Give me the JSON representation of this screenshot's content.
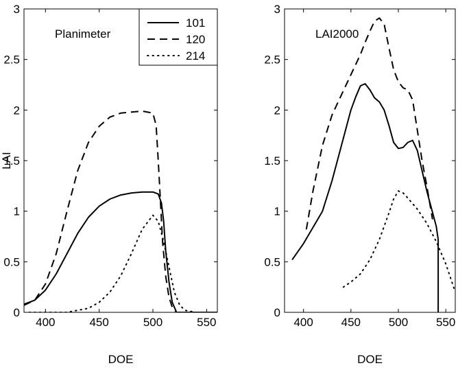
{
  "chart_data": [
    {
      "type": "line",
      "annotation": "Planimeter",
      "xlabel": "DOE",
      "ylabel": "LAI",
      "xlim": [
        380,
        560
      ],
      "ylim": [
        0,
        3
      ],
      "xticks": [
        400,
        450,
        500,
        550
      ],
      "yticks": [
        0,
        0.5,
        1,
        1.5,
        2,
        2.5,
        3
      ],
      "legend_position": "top-right",
      "series": [
        {
          "name": "101",
          "style": "solid",
          "x": [
            380,
            390,
            400,
            410,
            420,
            430,
            440,
            450,
            460,
            470,
            480,
            490,
            500,
            505,
            508,
            510,
            512,
            515,
            518,
            522,
            530,
            540,
            560
          ],
          "y": [
            0.08,
            0.12,
            0.22,
            0.38,
            0.58,
            0.78,
            0.94,
            1.05,
            1.12,
            1.16,
            1.18,
            1.19,
            1.19,
            1.17,
            1.08,
            0.9,
            0.6,
            0.3,
            0.1,
            0.0,
            0.0,
            0.0,
            0.0
          ]
        },
        {
          "name": "120",
          "style": "dashed",
          "x": [
            380,
            390,
            400,
            410,
            420,
            430,
            440,
            450,
            460,
            470,
            480,
            490,
            500,
            503,
            505,
            507,
            509,
            512,
            515,
            518,
            522,
            530,
            560
          ],
          "y": [
            0.07,
            0.12,
            0.28,
            0.58,
            1.0,
            1.4,
            1.68,
            1.84,
            1.93,
            1.97,
            1.98,
            1.99,
            1.97,
            1.85,
            1.5,
            1.1,
            0.7,
            0.35,
            0.15,
            0.05,
            0.0,
            0.0,
            0.0
          ]
        },
        {
          "name": "214",
          "style": "dotted",
          "x": [
            385,
            400,
            420,
            440,
            450,
            460,
            470,
            480,
            490,
            500,
            505,
            510,
            515,
            520,
            525,
            530,
            540,
            560
          ],
          "y": [
            0.0,
            0.0,
            0.0,
            0.04,
            0.1,
            0.2,
            0.36,
            0.58,
            0.82,
            0.96,
            0.9,
            0.7,
            0.45,
            0.2,
            0.07,
            0.02,
            0.0,
            0.0
          ]
        }
      ]
    },
    {
      "type": "line",
      "annotation": "LAI2000",
      "xlabel": "DOE",
      "ylabel": "",
      "xlim": [
        380,
        560
      ],
      "ylim": [
        0,
        3
      ],
      "xticks": [
        400,
        450,
        500,
        550
      ],
      "yticks": [
        0,
        0.5,
        1,
        1.5,
        2,
        2.5,
        3
      ],
      "series": [
        {
          "name": "101",
          "style": "solid",
          "x": [
            388,
            400,
            410,
            420,
            430,
            440,
            450,
            455,
            460,
            465,
            470,
            475,
            480,
            485,
            490,
            495,
            500,
            505,
            510,
            515,
            520,
            530,
            540,
            542,
            542
          ],
          "y": [
            0.52,
            0.68,
            0.84,
            1.0,
            1.3,
            1.65,
            2.0,
            2.13,
            2.24,
            2.26,
            2.2,
            2.12,
            2.08,
            2.0,
            1.85,
            1.68,
            1.62,
            1.63,
            1.68,
            1.7,
            1.6,
            1.2,
            0.85,
            0.72,
            0.0
          ]
        },
        {
          "name": "120",
          "style": "dashed",
          "x": [
            403,
            410,
            420,
            430,
            440,
            450,
            460,
            465,
            470,
            475,
            480,
            485,
            490,
            495,
            500,
            505,
            510,
            515,
            520,
            525,
            530,
            536
          ],
          "y": [
            0.82,
            1.2,
            1.65,
            1.95,
            2.15,
            2.35,
            2.55,
            2.67,
            2.78,
            2.88,
            2.91,
            2.85,
            2.62,
            2.4,
            2.28,
            2.22,
            2.2,
            2.1,
            1.8,
            1.5,
            1.25,
            0.92
          ]
        },
        {
          "name": "214",
          "style": "dotted",
          "x": [
            442,
            450,
            460,
            470,
            480,
            490,
            495,
            500,
            505,
            510,
            520,
            530,
            540,
            550,
            560
          ],
          "y": [
            0.25,
            0.3,
            0.38,
            0.52,
            0.72,
            0.98,
            1.12,
            1.2,
            1.18,
            1.13,
            1.02,
            0.88,
            0.7,
            0.48,
            0.2
          ]
        }
      ]
    }
  ]
}
